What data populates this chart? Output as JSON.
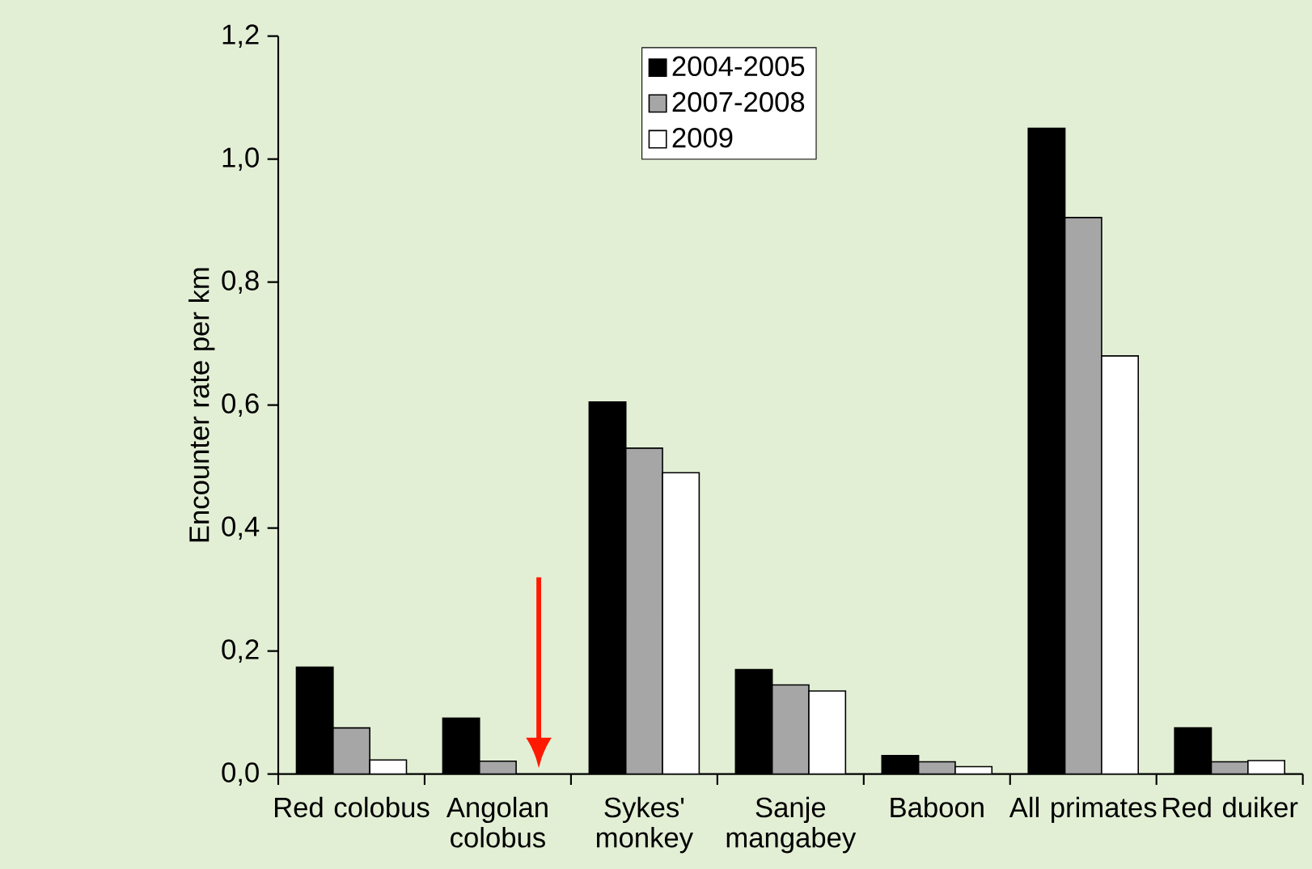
{
  "chart_data": {
    "type": "bar",
    "ylabel": "Encounter rate per km",
    "categories": [
      "Red colobus",
      "Angolan colobus",
      "Sykes' monkey",
      "Sanje mangabey",
      "Baboon",
      "All primates",
      "Red duiker"
    ],
    "series": [
      {
        "name": "2004-2005",
        "color": "#000000",
        "values": [
          0.174,
          0.091,
          0.605,
          0.17,
          0.03,
          1.05,
          0.075
        ]
      },
      {
        "name": "2007-2008",
        "color": "#a6a6a6",
        "values": [
          0.075,
          0.021,
          0.53,
          0.145,
          0.02,
          0.905,
          0.02
        ]
      },
      {
        "name": "2009",
        "color": "#ffffff",
        "values": [
          0.023,
          null,
          0.49,
          0.135,
          0.012,
          0.68,
          0.022
        ]
      }
    ],
    "ylim": [
      0,
      1.2
    ],
    "yticks": [
      {
        "value": 0,
        "label": "0,0"
      },
      {
        "value": 0.2,
        "label": "0,2"
      },
      {
        "value": 0.4,
        "label": "0,4"
      },
      {
        "value": 0.6,
        "label": "0,6"
      },
      {
        "value": 0.8,
        "label": "0,8"
      },
      {
        "value": 1.0,
        "label": "1,0"
      },
      {
        "value": 1.2,
        "label": "1,2"
      }
    ],
    "grid": false,
    "legend": "top"
  }
}
